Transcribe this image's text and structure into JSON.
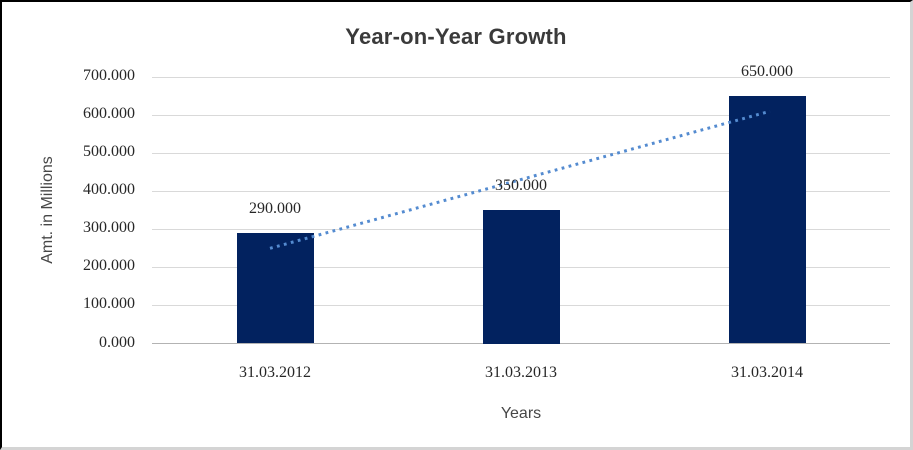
{
  "chart_data": {
    "type": "bar",
    "title": "Year-on-Year Growth",
    "xlabel": "Years",
    "ylabel": "Amt. in Millions",
    "categories": [
      "31.03.2012",
      "31.03.2013",
      "31.03.2014"
    ],
    "values": [
      290,
      350,
      650
    ],
    "value_labels": [
      "290.000",
      "350.000",
      "650.000"
    ],
    "ylim": [
      0,
      700
    ],
    "y_tick_step": 100,
    "y_tick_labels": [
      "0.000",
      "100.000",
      "200.000",
      "300.000",
      "400.000",
      "500.000",
      "600.000",
      "700.000"
    ],
    "grid": true,
    "legend": "none",
    "bar_color": "#02225f",
    "trendline": {
      "style": "dotted",
      "color": "#548bd0",
      "start_value": 250,
      "end_value": 610
    },
    "gridline_color": "#d9d9d9",
    "axis_line_color": "#b3b3b3",
    "label_text_color": "#262626",
    "title_text_color": "#3a3a3a"
  }
}
